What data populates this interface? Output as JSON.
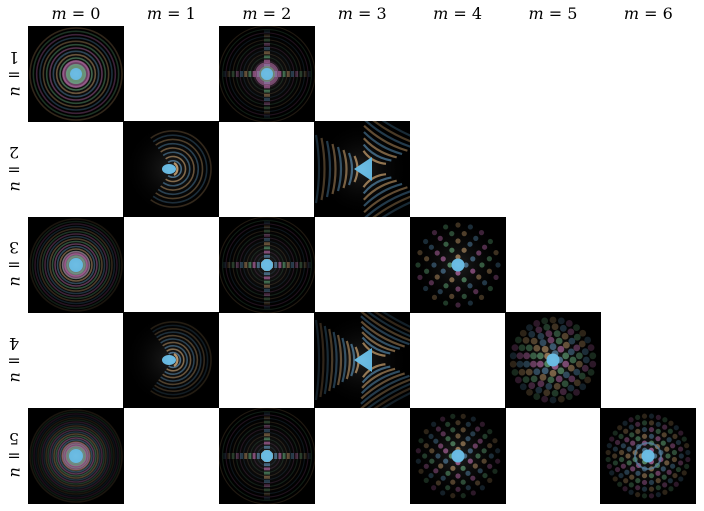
{
  "figure": {
    "columns": [
      {
        "sym": "m",
        "eq": " = ",
        "val": "0"
      },
      {
        "sym": "m",
        "eq": " = ",
        "val": "1"
      },
      {
        "sym": "m",
        "eq": " = ",
        "val": "2"
      },
      {
        "sym": "m",
        "eq": " = ",
        "val": "3"
      },
      {
        "sym": "m",
        "eq": " = ",
        "val": "4"
      },
      {
        "sym": "m",
        "eq": " = ",
        "val": "5"
      },
      {
        "sym": "m",
        "eq": " = ",
        "val": "6"
      }
    ],
    "rows": [
      {
        "sym": "n",
        "eq": " = ",
        "val": "1"
      },
      {
        "sym": "n",
        "eq": " = ",
        "val": "2"
      },
      {
        "sym": "n",
        "eq": " = ",
        "val": "3"
      },
      {
        "sym": "n",
        "eq": " = ",
        "val": "4"
      },
      {
        "sym": "n",
        "eq": " = ",
        "val": "5"
      }
    ],
    "panels": [
      {
        "n": 1,
        "m": 0
      },
      {
        "n": 1,
        "m": 2
      },
      {
        "n": 2,
        "m": 1
      },
      {
        "n": 2,
        "m": 3
      },
      {
        "n": 3,
        "m": 0
      },
      {
        "n": 3,
        "m": 2
      },
      {
        "n": 3,
        "m": 4
      },
      {
        "n": 4,
        "m": 1
      },
      {
        "n": 4,
        "m": 3
      },
      {
        "n": 4,
        "m": 5
      },
      {
        "n": 5,
        "m": 0
      },
      {
        "n": 5,
        "m": 2
      },
      {
        "n": 5,
        "m": 4
      },
      {
        "n": 5,
        "m": 6
      }
    ],
    "colors": {
      "background": "#000000",
      "center": "#5ab4e0",
      "ring_orange": "#b08a5c",
      "ring_blue": "#4a7a9c",
      "ring_magenta": "#b060a0",
      "ring_green": "#5aa070"
    }
  }
}
